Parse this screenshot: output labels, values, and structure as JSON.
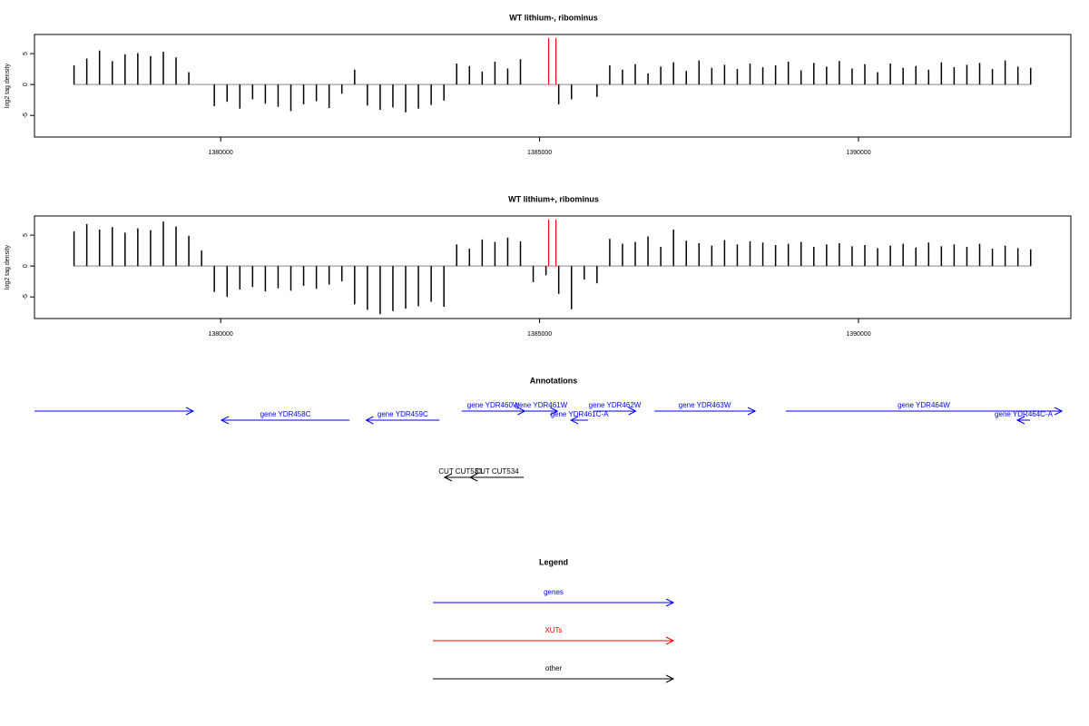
{
  "chart_data": [
    {
      "type": "bar",
      "title": "WT lithium-, ribominus",
      "y_label": "log2 tag density",
      "color": "#000000",
      "x": [
        1377700,
        1377900,
        1378100,
        1378300,
        1378500,
        1378700,
        1378900,
        1379100,
        1379300,
        1379500,
        1379700,
        1379900,
        1380100,
        1380300,
        1380500,
        1380700,
        1380900,
        1381100,
        1381300,
        1381500,
        1381700,
        1381900,
        1382100,
        1382300,
        1382500,
        1382700,
        1382900,
        1383100,
        1383300,
        1383500,
        1383700,
        1383900,
        1384100,
        1384300,
        1384500,
        1384700,
        1384900,
        1385100,
        1385300,
        1385500,
        1385700,
        1385900,
        1386100,
        1386300,
        1386500,
        1386700,
        1386900,
        1387100,
        1387300,
        1387500,
        1387700,
        1387900,
        1388100,
        1388300,
        1388500,
        1388700,
        1388900,
        1389100,
        1389300,
        1389500,
        1389700,
        1389900,
        1390100,
        1390300,
        1390500,
        1390700,
        1390900,
        1391100,
        1391300,
        1391500,
        1391700,
        1391900,
        1392100,
        1392300,
        1392500,
        1392700
      ],
      "values": [
        3.1,
        4.2,
        5.5,
        3.8,
        4.9,
        5.1,
        4.6,
        5.3,
        4.4,
        2.0,
        null,
        -3.5,
        -2.8,
        -3.9,
        -2.4,
        -3.1,
        -3.6,
        -4.3,
        -3.2,
        -2.7,
        -3.8,
        -1.5,
        2.4,
        -3.4,
        -4.1,
        -3.7,
        -4.5,
        -3.9,
        -3.3,
        -2.6,
        3.4,
        3.0,
        2.1,
        3.7,
        2.6,
        4.1,
        null,
        null,
        -3.2,
        -2.4,
        null,
        -2.0,
        3.1,
        2.4,
        3.3,
        1.8,
        2.9,
        3.6,
        2.2,
        3.9,
        2.7,
        3.2,
        2.5,
        3.4,
        2.8,
        3.1,
        3.7,
        2.3,
        3.5,
        2.9,
        3.8,
        2.6,
        3.3,
        2.0,
        3.4,
        2.7,
        3.0,
        2.4,
        3.6,
        2.8,
        3.2,
        3.5,
        2.5,
        3.9,
        2.9,
        2.7
      ],
      "xlim": [
        1377080,
        1393330
      ],
      "ylim": [
        -8.5,
        8.1
      ],
      "xticks": [
        1380000,
        1385000,
        1390000
      ],
      "yticks": [
        -5,
        0,
        5
      ],
      "markers": [
        {
          "x": 1385142,
          "color": "#ff0000"
        },
        {
          "x": 1385256,
          "color": "#ff0000"
        }
      ]
    },
    {
      "type": "bar",
      "title": "WT lithium+, ribominus",
      "y_label": "log2 tag density",
      "color": "#000000",
      "x": [
        1377700,
        1377900,
        1378100,
        1378300,
        1378500,
        1378700,
        1378900,
        1379100,
        1379300,
        1379500,
        1379700,
        1379900,
        1380100,
        1380300,
        1380500,
        1380700,
        1380900,
        1381100,
        1381300,
        1381500,
        1381700,
        1381900,
        1382100,
        1382300,
        1382500,
        1382700,
        1382900,
        1383100,
        1383300,
        1383500,
        1383700,
        1383900,
        1384100,
        1384300,
        1384500,
        1384700,
        1384900,
        1385100,
        1385300,
        1385500,
        1385700,
        1385900,
        1386100,
        1386300,
        1386500,
        1386700,
        1386900,
        1387100,
        1387300,
        1387500,
        1387700,
        1387900,
        1388100,
        1388300,
        1388500,
        1388700,
        1388900,
        1389100,
        1389300,
        1389500,
        1389700,
        1389900,
        1390100,
        1390300,
        1390500,
        1390700,
        1390900,
        1391100,
        1391300,
        1391500,
        1391700,
        1391900,
        1392100,
        1392300,
        1392500,
        1392700
      ],
      "values": [
        5.6,
        6.8,
        5.9,
        6.3,
        5.4,
        6.1,
        5.8,
        7.2,
        6.4,
        4.9,
        2.5,
        -4.2,
        -5.0,
        -3.8,
        -3.4,
        -4.1,
        -3.6,
        -4.0,
        -3.2,
        -3.7,
        -3.0,
        -2.5,
        -6.2,
        -7.1,
        -7.8,
        -7.3,
        -6.9,
        -6.5,
        -5.8,
        -6.6,
        3.5,
        2.8,
        4.3,
        3.9,
        4.6,
        4.0,
        -2.6,
        -1.5,
        -4.5,
        -7.0,
        -2.2,
        -2.8,
        4.4,
        3.6,
        3.9,
        4.8,
        3.1,
        5.9,
        4.1,
        3.7,
        3.3,
        4.2,
        3.5,
        4.0,
        3.8,
        3.4,
        3.6,
        3.9,
        3.1,
        3.5,
        3.7,
        3.2,
        3.4,
        2.9,
        3.3,
        3.6,
        3.0,
        3.8,
        3.2,
        3.5,
        3.1,
        3.6,
        2.8,
        3.3,
        2.9,
        2.7
      ],
      "xlim": [
        1377080,
        1393330
      ],
      "ylim": [
        -8.5,
        8.1
      ],
      "xticks": [
        1380000,
        1385000,
        1390000
      ],
      "yticks": [
        -5,
        0,
        5
      ],
      "markers": [
        {
          "x": 1385142,
          "color": "#ff0000"
        },
        {
          "x": 1385256,
          "color": "#ff0000"
        }
      ]
    }
  ],
  "annotations": {
    "title": "Annotations",
    "features": [
      {
        "start": 1377080,
        "end": 1379570,
        "strand": "+",
        "color": "#0000ff"
      },
      {
        "label": "gene YDR458C",
        "start": 1380010,
        "end": 1382020,
        "strand": "-",
        "color": "#0000ff"
      },
      {
        "label": "gene YDR459C",
        "start": 1382280,
        "end": 1383430,
        "strand": "-",
        "color": "#0000ff"
      },
      {
        "label": "gene YDR460W",
        "start": 1383780,
        "end": 1384770,
        "strand": "+",
        "color": "#0000ff"
      },
      {
        "label": "gene YDR461W",
        "start": 1384770,
        "end": 1385280,
        "strand": "+",
        "color": "#0000ff"
      },
      {
        "label": "gene YDR461C-A",
        "start": 1385490,
        "end": 1385760,
        "strand": "-",
        "color": "#0000ff"
      },
      {
        "label": "gene YDR462W",
        "start": 1385850,
        "end": 1386510,
        "strand": "+",
        "color": "#0000ff"
      },
      {
        "label": "gene YDR463W",
        "start": 1386800,
        "end": 1388380,
        "strand": "+",
        "color": "#0000ff"
      },
      {
        "label": "gene YDR464W",
        "start": 1388860,
        "end": 1393190,
        "strand": "+",
        "color": "#0000ff"
      },
      {
        "label": "gene YDR464C-A",
        "start": 1392490,
        "end": 1392690,
        "strand": "-",
        "color": "#0000ff"
      },
      {
        "label": "CUT CUT533",
        "start": 1383510,
        "end": 1384010,
        "strand": "-",
        "color": "#000000",
        "track": "cut"
      },
      {
        "label": "CUT CUT534",
        "start": 1383910,
        "end": 1384750,
        "strand": "-",
        "color": "#000000",
        "track": "cut"
      }
    ]
  },
  "legend": {
    "title": "Legend",
    "items": [
      {
        "label": "genes",
        "color": "#0000ff"
      },
      {
        "label": "XUTs",
        "color": "#ff0000"
      },
      {
        "label": "other",
        "color": "#000000"
      }
    ]
  }
}
